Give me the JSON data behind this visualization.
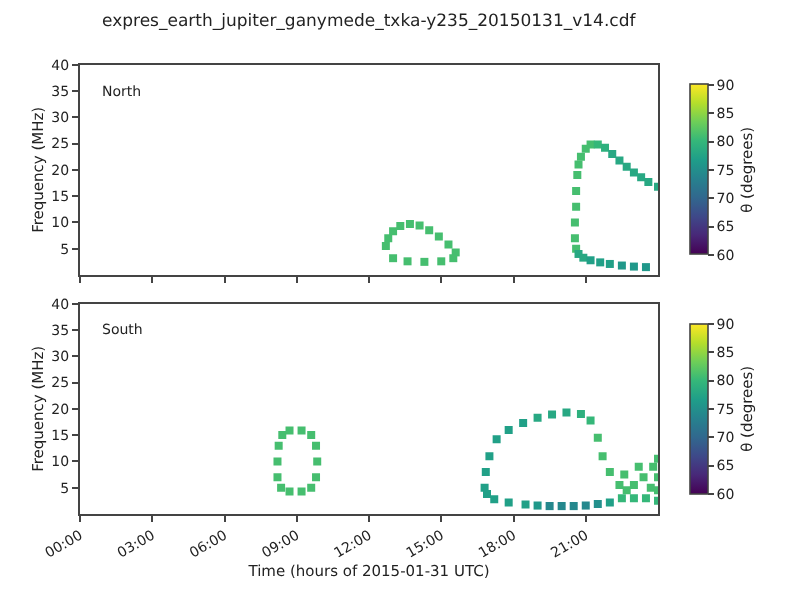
{
  "chart_data": [
    {
      "type": "scatter",
      "title": "expres_earth_jupiter_ganymede_txka-y235_20150131_v14.cdf",
      "ylabel": "Frequency (MHz)",
      "clabel": "θ (degrees)",
      "annotations": [
        "North"
      ],
      "tick_labels": "y",
      "marker": "square",
      "x": [
        12.7,
        12.8,
        13.0,
        13.3,
        13.7,
        14.1,
        14.5,
        14.9,
        15.3,
        15.6,
        15.5,
        15.0,
        14.3,
        13.6,
        13.0,
        20.6,
        20.55,
        20.55,
        20.6,
        20.6,
        20.65,
        20.7,
        20.8,
        21.0,
        21.2,
        21.5,
        21.8,
        22.1,
        22.4,
        22.7,
        23.0,
        23.3,
        23.6,
        24.0,
        20.7,
        20.9,
        21.2,
        21.6,
        22.0,
        22.5,
        23.0,
        23.5
      ],
      "values": [
        5.5,
        7,
        8.3,
        9.3,
        9.7,
        9.4,
        8.5,
        7.3,
        5.8,
        4.3,
        3.2,
        2.6,
        2.5,
        2.6,
        3.2,
        5,
        7,
        10,
        13,
        16,
        19,
        21,
        22.5,
        24,
        24.8,
        24.8,
        24.2,
        23,
        21.8,
        20.6,
        19.5,
        18.6,
        17.7,
        16.8,
        4,
        3.3,
        2.8,
        2.4,
        2.1,
        1.8,
        1.6,
        1.5
      ],
      "cvalues": [
        81,
        81,
        81,
        81,
        81,
        81,
        81,
        81,
        81,
        81,
        81,
        81,
        81,
        81,
        81,
        81,
        81,
        81,
        81,
        81,
        81,
        81,
        81,
        81,
        81,
        80,
        79,
        78,
        78,
        78,
        78,
        78,
        78,
        78,
        78,
        78,
        77,
        77,
        77,
        76,
        76,
        76
      ],
      "xlim": [
        0,
        24
      ],
      "xticks": [
        {
          "value": 0,
          "label": null
        },
        {
          "value": 3,
          "label": null
        },
        {
          "value": 6,
          "label": null
        },
        {
          "value": 9,
          "label": null
        },
        {
          "value": 12,
          "label": null
        },
        {
          "value": 15,
          "label": null
        },
        {
          "value": 18,
          "label": null
        },
        {
          "value": 21,
          "label": null
        }
      ],
      "ylim": [
        0,
        40
      ],
      "yticks": [
        5,
        10,
        15,
        20,
        25,
        30,
        35,
        40
      ],
      "clim": [
        60,
        90
      ],
      "cticks": [
        60,
        65,
        70,
        75,
        80,
        85,
        90
      ]
    },
    {
      "type": "scatter",
      "xlabel": "Time (hours of 2015-01-31 UTC)",
      "ylabel": "Frequency (MHz)",
      "clabel": "θ (degrees)",
      "annotations": [
        "South"
      ],
      "marker": "square",
      "x": [
        8.2,
        8.25,
        8.4,
        8.7,
        9.2,
        9.6,
        9.8,
        9.85,
        9.8,
        9.6,
        9.2,
        8.7,
        8.35,
        8.2,
        16.8,
        16.85,
        17.0,
        17.3,
        17.8,
        18.4,
        19.0,
        19.6,
        20.2,
        20.8,
        21.2,
        21.5,
        21.7,
        22.0,
        22.4,
        22.7,
        23.0,
        23.4,
        23.8,
        24.0,
        22.6,
        23.2,
        23.7,
        24.0,
        24.0,
        22.5,
        23.0,
        23.5,
        24.0,
        22.0,
        21.5,
        21.0,
        20.5,
        20.0,
        19.5,
        19.0,
        18.5,
        17.8,
        17.2,
        16.9
      ],
      "values": [
        10,
        13,
        15,
        15.9,
        15.9,
        15,
        13,
        10,
        7,
        5,
        4.3,
        4.3,
        5,
        7,
        5,
        8,
        11,
        14.2,
        16,
        17.3,
        18.3,
        18.9,
        19.3,
        19,
        17.8,
        14.5,
        11,
        8,
        5.5,
        4.5,
        5.5,
        7,
        9,
        10.5,
        7.5,
        9,
        5,
        4.5,
        7,
        3,
        3,
        3,
        2.5,
        2.2,
        1.9,
        1.6,
        1.5,
        1.5,
        1.5,
        1.6,
        1.8,
        2.2,
        2.8,
        3.8
      ],
      "cvalues": [
        81,
        81,
        81,
        81,
        81,
        81,
        81,
        81,
        81,
        81,
        81,
        81,
        81,
        81,
        77,
        77,
        77,
        77,
        77,
        77,
        78,
        78,
        78,
        79,
        80,
        81,
        81,
        81,
        81,
        81,
        81,
        81,
        81,
        81,
        81,
        81,
        81,
        81,
        81,
        80,
        80,
        80,
        80,
        77,
        75,
        74,
        74,
        74,
        74,
        76,
        77,
        77,
        77,
        77
      ],
      "xlim": [
        0,
        24
      ],
      "xticks": [
        {
          "value": 0,
          "label": "00:00"
        },
        {
          "value": 3,
          "label": "03:00"
        },
        {
          "value": 6,
          "label": "06:00"
        },
        {
          "value": 9,
          "label": "09:00"
        },
        {
          "value": 12,
          "label": "12:00"
        },
        {
          "value": 15,
          "label": "15:00"
        },
        {
          "value": 18,
          "label": "18:00"
        },
        {
          "value": 21,
          "label": "21:00"
        }
      ],
      "ylim": [
        0,
        40
      ],
      "yticks": [
        5,
        10,
        15,
        20,
        25,
        30,
        35,
        40
      ],
      "clim": [
        60,
        90
      ],
      "cticks": [
        60,
        65,
        70,
        75,
        80,
        85,
        90
      ]
    }
  ]
}
